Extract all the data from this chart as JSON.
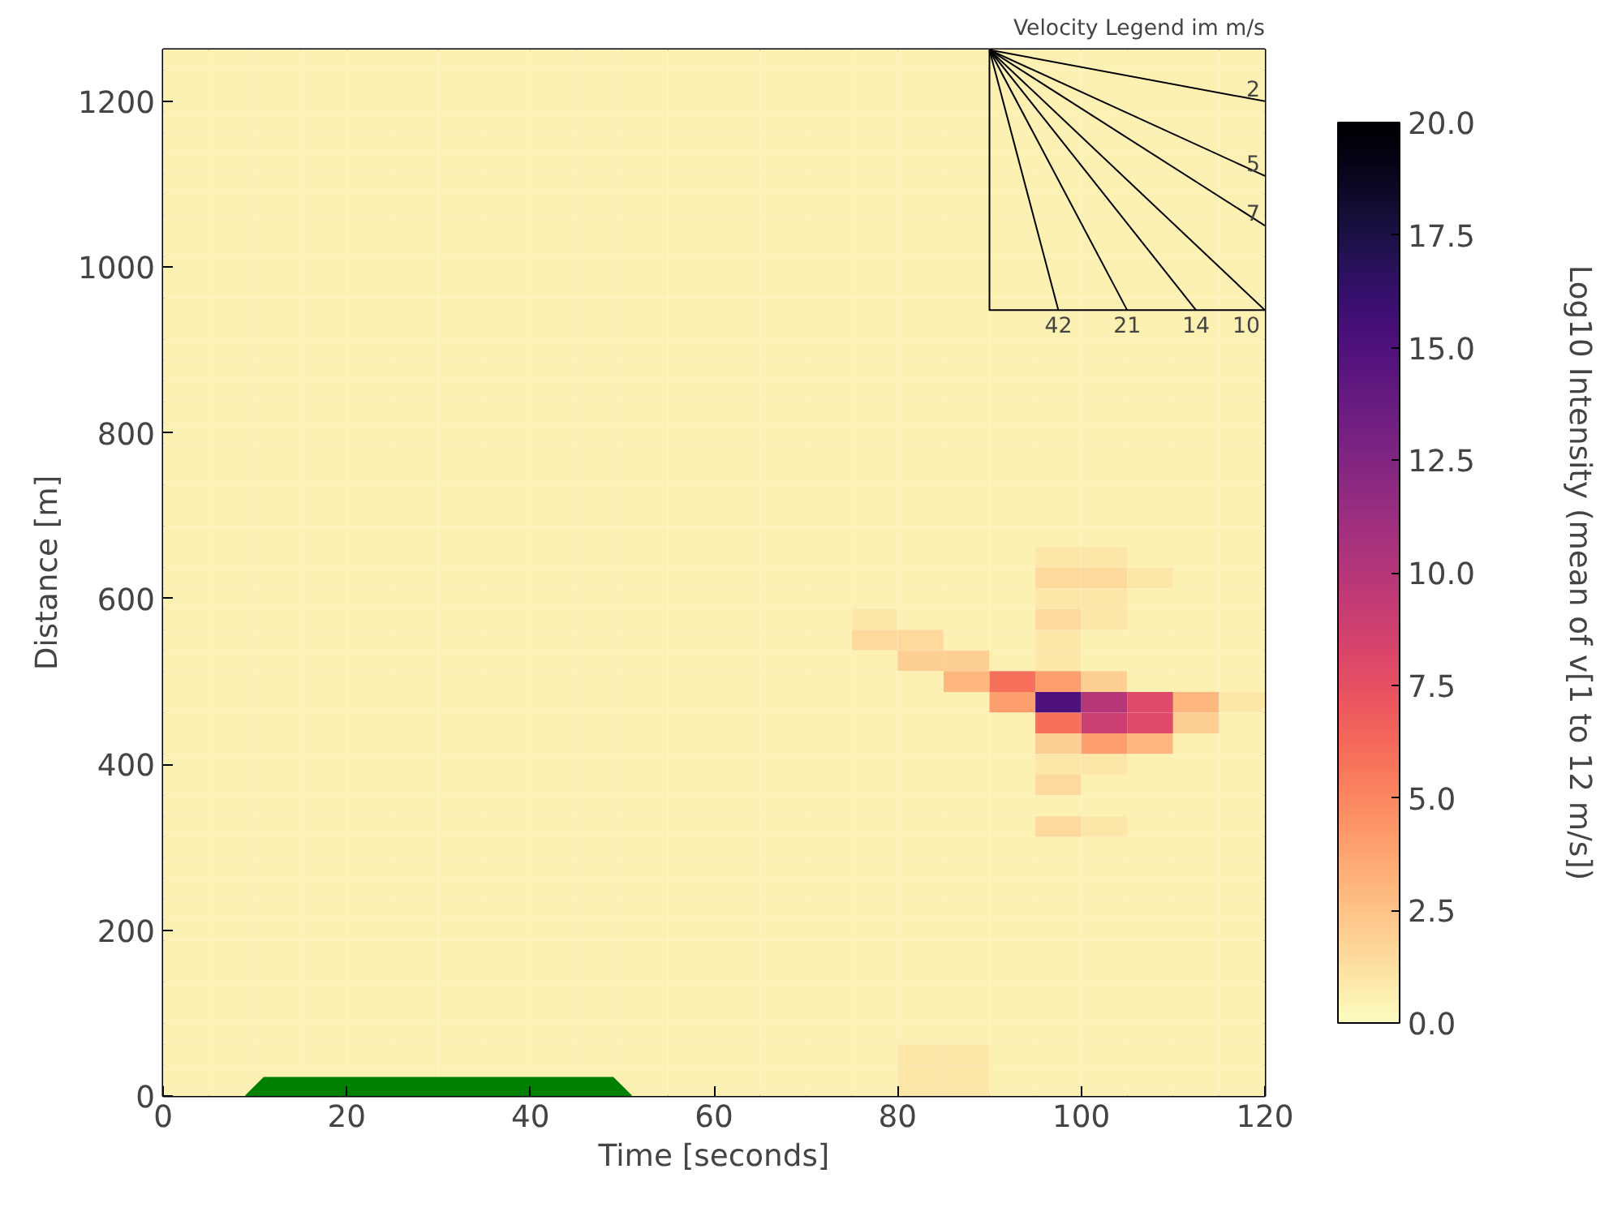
{
  "chart_data": {
    "type": "heatmap",
    "xlabel": "Time [seconds]",
    "ylabel": "Distance [m]",
    "clabel": "Log10 Intensity (mean of v[1 to 12 m/s])",
    "xlim": [
      0,
      120
    ],
    "ylim": [
      0,
      1262.5
    ],
    "xticks": [
      0,
      20,
      40,
      60,
      80,
      100,
      120
    ],
    "yticks": [
      0,
      200,
      400,
      600,
      800,
      1000,
      1200
    ],
    "clim": [
      0,
      20
    ],
    "cticks": [
      {
        "value": 0,
        "label": "0.0"
      },
      {
        "value": 2.5,
        "label": "2.5"
      },
      {
        "value": 5,
        "label": "5.0"
      },
      {
        "value": 7.5,
        "label": "7.5"
      },
      {
        "value": 10,
        "label": "10.0"
      },
      {
        "value": 12.5,
        "label": "12.5"
      },
      {
        "value": 15,
        "label": "15.0"
      },
      {
        "value": 17.5,
        "label": "17.5"
      },
      {
        "value": 20,
        "label": "20.0"
      }
    ],
    "x": [
      2.5,
      7.5,
      12.5,
      17.5,
      22.5,
      27.5,
      32.5,
      37.5,
      42.5,
      47.5,
      52.5,
      57.5,
      62.5,
      67.5,
      72.5,
      77.5,
      82.5,
      87.5,
      92.5,
      97.5,
      102.5,
      107.5,
      112.5,
      117.5
    ],
    "y": [
      1250,
      1225,
      1200,
      1175,
      1150,
      1125,
      1100,
      1075,
      1050,
      1025,
      1000,
      975,
      950,
      925,
      900,
      875,
      850,
      825,
      800,
      775,
      750,
      725,
      700,
      675,
      650,
      625,
      600,
      575,
      550,
      525,
      500,
      475,
      450,
      425,
      400,
      375,
      350,
      325,
      300,
      275,
      250,
      225,
      200,
      175,
      150,
      125,
      100,
      75,
      50,
      25,
      0
    ],
    "cells": [
      [
        0.5,
        0.5,
        0.5,
        0.5,
        0.5,
        0.5,
        0.5,
        0.5,
        0.5,
        0.5,
        0.5,
        0.5,
        0.5,
        0.5,
        0.5,
        0.5,
        0.5,
        0.5,
        0.5,
        0.5,
        0.5,
        0.5,
        0.5,
        0.5
      ],
      [
        0.5,
        0.5,
        0.5,
        0.5,
        0.5,
        0.5,
        0.5,
        0.5,
        0.5,
        0.5,
        0.5,
        0.5,
        0.5,
        0.5,
        0.5,
        0.5,
        0.5,
        0.5,
        0.5,
        0.5,
        0.5,
        0.5,
        0.5,
        0.5
      ],
      [
        0.5,
        0.5,
        0.5,
        0.5,
        0.5,
        0.5,
        0.5,
        0.5,
        0.5,
        0.5,
        0.5,
        0.5,
        0.5,
        0.5,
        0.5,
        0.5,
        0.5,
        0.5,
        0.5,
        0.5,
        0.5,
        0.5,
        0.5,
        0.5
      ],
      [
        0.5,
        0.5,
        0.5,
        0.5,
        0.5,
        0.5,
        0.5,
        0.5,
        0.5,
        0.5,
        0.5,
        0.5,
        0.5,
        0.5,
        0.5,
        0.5,
        0.5,
        0.5,
        0.5,
        0.5,
        0.5,
        0.5,
        0.5,
        0.5
      ],
      [
        0.5,
        0.5,
        0.5,
        0.5,
        0.5,
        0.5,
        0.5,
        0.5,
        0.5,
        0.5,
        0.5,
        0.5,
        0.5,
        0.5,
        0.5,
        0.5,
        0.5,
        0.5,
        0.5,
        0.5,
        0.5,
        0.5,
        0.5,
        0.5
      ],
      [
        0.5,
        0.5,
        0.5,
        0.5,
        0.5,
        0.5,
        0.5,
        0.5,
        0.5,
        0.5,
        0.5,
        0.5,
        0.5,
        0.5,
        0.5,
        0.5,
        0.5,
        0.5,
        0.5,
        0.5,
        0.5,
        0.5,
        0.5,
        0.5
      ],
      [
        0.5,
        0.5,
        0.5,
        0.5,
        0.5,
        0.5,
        0.5,
        0.5,
        0.5,
        0.5,
        0.5,
        0.5,
        0.5,
        0.5,
        0.5,
        0.5,
        0.5,
        0.5,
        0.5,
        0.5,
        0.5,
        0.5,
        0.5,
        0.5
      ],
      [
        0.5,
        0.5,
        0.5,
        0.5,
        0.5,
        0.5,
        0.5,
        0.5,
        0.5,
        0.5,
        0.5,
        0.5,
        0.5,
        0.5,
        0.5,
        0.5,
        0.5,
        0.5,
        0.5,
        0.5,
        0.5,
        0.5,
        0.5,
        0.5
      ],
      [
        0.5,
        0.5,
        0.5,
        0.5,
        0.5,
        0.5,
        0.5,
        0.5,
        0.5,
        0.5,
        0.5,
        0.5,
        0.5,
        0.5,
        0.5,
        0.5,
        0.5,
        0.5,
        0.5,
        0.5,
        0.5,
        0.5,
        0.5,
        0.5
      ],
      [
        0.5,
        0.5,
        0.5,
        0.5,
        0.5,
        0.5,
        0.5,
        0.5,
        0.5,
        0.5,
        0.5,
        0.5,
        0.5,
        0.5,
        0.5,
        0.5,
        0.5,
        0.5,
        0.5,
        0.5,
        0.5,
        0.5,
        0.5,
        0.5
      ],
      [
        0.5,
        0.5,
        0.5,
        0.5,
        0.5,
        0.5,
        0.5,
        0.5,
        0.5,
        0.5,
        0.5,
        0.5,
        0.5,
        0.5,
        0.5,
        0.5,
        0.5,
        0.5,
        0.5,
        0.5,
        0.5,
        0.5,
        0.5,
        0.5
      ],
      [
        0.5,
        0.5,
        0.5,
        0.5,
        0.5,
        0.5,
        0.5,
        0.5,
        0.5,
        0.5,
        0.5,
        0.5,
        0.5,
        0.5,
        0.5,
        0.5,
        0.5,
        0.5,
        0.5,
        0.5,
        0.5,
        0.5,
        0.5,
        0.5
      ],
      [
        0.5,
        0.5,
        0.5,
        0.5,
        0.5,
        0.5,
        0.5,
        0.5,
        0.5,
        0.5,
        0.5,
        0.5,
        0.5,
        0.5,
        0.5,
        0.5,
        0.5,
        0.5,
        0.5,
        0.5,
        0.5,
        0.5,
        0.5,
        0.5
      ],
      [
        0.5,
        0.5,
        0.5,
        0.5,
        0.5,
        0.5,
        0.5,
        0.5,
        0.5,
        0.5,
        0.5,
        0.5,
        0.5,
        0.5,
        0.5,
        0.5,
        0.5,
        0.5,
        0.5,
        0.5,
        0.5,
        0.5,
        0.5,
        0.5
      ],
      [
        0.5,
        0.5,
        0.5,
        0.5,
        0.5,
        0.5,
        0.5,
        0.5,
        0.5,
        0.5,
        0.5,
        0.5,
        0.5,
        0.5,
        0.5,
        0.5,
        0.5,
        0.5,
        0.5,
        0.5,
        0.5,
        0.5,
        0.5,
        0.5
      ],
      [
        0.5,
        0.5,
        0.5,
        0.5,
        0.5,
        0.5,
        0.5,
        0.5,
        0.5,
        0.5,
        0.5,
        0.5,
        0.5,
        0.5,
        0.5,
        0.5,
        0.5,
        0.5,
        0.5,
        0.5,
        0.5,
        0.5,
        0.5,
        0.5
      ],
      [
        0.5,
        0.5,
        0.5,
        0.5,
        0.5,
        0.5,
        0.5,
        0.5,
        0.5,
        0.5,
        0.5,
        0.5,
        0.5,
        0.5,
        0.5,
        0.5,
        0.5,
        0.5,
        0.5,
        0.5,
        0.5,
        0.5,
        0.5,
        0.5
      ],
      [
        0.5,
        0.5,
        0.5,
        0.5,
        0.5,
        0.5,
        0.5,
        0.5,
        0.5,
        0.5,
        0.5,
        0.5,
        0.5,
        0.5,
        0.5,
        0.5,
        0.5,
        0.5,
        0.5,
        0.5,
        0.5,
        0.5,
        0.5,
        0.5
      ],
      [
        0.5,
        0.5,
        0.5,
        0.5,
        0.5,
        0.5,
        0.5,
        0.5,
        0.5,
        0.5,
        0.5,
        0.5,
        0.5,
        0.5,
        0.5,
        0.5,
        0.5,
        0.5,
        0.5,
        0.5,
        0.5,
        0.5,
        0.5,
        0.5
      ],
      [
        0.5,
        0.5,
        0.5,
        0.5,
        0.5,
        0.5,
        0.5,
        0.5,
        0.5,
        0.5,
        0.5,
        0.5,
        0.5,
        0.5,
        0.5,
        0.5,
        0.5,
        0.5,
        0.5,
        0.5,
        0.5,
        0.5,
        0.5,
        0.5
      ],
      [
        0.5,
        0.5,
        0.5,
        0.5,
        0.5,
        0.5,
        0.5,
        0.5,
        0.5,
        0.5,
        0.5,
        0.5,
        0.5,
        0.5,
        0.5,
        0.5,
        0.5,
        0.5,
        0.5,
        0.5,
        0.5,
        0.5,
        0.5,
        0.5
      ],
      [
        0.5,
        0.5,
        0.5,
        0.5,
        0.5,
        0.5,
        0.5,
        0.5,
        0.5,
        0.5,
        0.5,
        0.5,
        0.5,
        0.5,
        0.5,
        0.5,
        0.5,
        0.5,
        0.5,
        0.5,
        0.5,
        0.5,
        0.5,
        0.5
      ],
      [
        0.5,
        0.5,
        0.5,
        0.5,
        0.5,
        0.5,
        0.5,
        0.5,
        0.5,
        0.5,
        0.5,
        0.5,
        0.5,
        0.5,
        0.5,
        0.5,
        0.5,
        0.5,
        0.5,
        0.5,
        0.5,
        0.5,
        0.5,
        0.5
      ],
      [
        0.5,
        0.5,
        0.5,
        0.5,
        0.5,
        0.5,
        0.5,
        0.5,
        0.5,
        0.5,
        0.5,
        0.5,
        0.5,
        0.5,
        0.5,
        0.5,
        0.5,
        0.5,
        0.5,
        0.5,
        0.5,
        0.5,
        0.5,
        0.5
      ],
      [
        0.5,
        0.5,
        0.5,
        0.5,
        0.5,
        0.5,
        0.5,
        0.5,
        0.5,
        0.5,
        0.5,
        0.5,
        0.5,
        0.5,
        0.5,
        0.5,
        0.5,
        0.5,
        0.5,
        1,
        1,
        0.5,
        0.5,
        0.5
      ],
      [
        0.5,
        0.5,
        0.5,
        0.5,
        0.5,
        0.5,
        0.5,
        0.5,
        0.5,
        0.5,
        0.5,
        0.5,
        0.5,
        0.5,
        0.5,
        0.5,
        0.5,
        0.5,
        0.5,
        1.5,
        1.5,
        1,
        0.5,
        0.5
      ],
      [
        0.5,
        0.5,
        0.5,
        0.5,
        0.5,
        0.5,
        0.5,
        0.5,
        0.5,
        0.5,
        0.5,
        0.5,
        0.5,
        0.5,
        0.5,
        0.5,
        0.5,
        0.5,
        0.5,
        1,
        1,
        0.5,
        0.5,
        0.5
      ],
      [
        0.5,
        0.5,
        0.5,
        0.5,
        0.5,
        0.5,
        0.5,
        0.5,
        0.5,
        0.5,
        0.5,
        0.5,
        0.5,
        0.5,
        0.5,
        1,
        0.5,
        0.5,
        0.5,
        1.5,
        1,
        0.5,
        0.5,
        0.5
      ],
      [
        0.5,
        0.5,
        0.5,
        0.5,
        0.5,
        0.5,
        0.5,
        0.5,
        0.5,
        0.5,
        0.5,
        0.5,
        0.5,
        0.5,
        0.5,
        1.5,
        1.5,
        0.5,
        0.5,
        1,
        0.5,
        0.5,
        0.5,
        0.5
      ],
      [
        0.5,
        0.5,
        0.5,
        0.5,
        0.5,
        0.5,
        0.5,
        0.5,
        0.5,
        0.5,
        0.5,
        0.5,
        0.5,
        0.5,
        0.5,
        0.5,
        2,
        2,
        0.5,
        1,
        0.5,
        0.5,
        0.5,
        0.5
      ],
      [
        0.5,
        0.5,
        0.5,
        0.5,
        0.5,
        0.5,
        0.5,
        0.5,
        0.5,
        0.5,
        0.5,
        0.5,
        0.5,
        0.5,
        0.5,
        0.5,
        0.5,
        3,
        6,
        4,
        2,
        0.5,
        0.5,
        0.5
      ],
      [
        0.5,
        0.5,
        0.5,
        0.5,
        0.5,
        0.5,
        0.5,
        0.5,
        0.5,
        0.5,
        0.5,
        0.5,
        0.5,
        0.5,
        0.5,
        0.5,
        0.5,
        0.5,
        4,
        15,
        10,
        8,
        3,
        1
      ],
      [
        0.5,
        0.5,
        0.5,
        0.5,
        0.5,
        0.5,
        0.5,
        0.5,
        0.5,
        0.5,
        0.5,
        0.5,
        0.5,
        0.5,
        0.5,
        0.5,
        0.5,
        0.5,
        0.5,
        6,
        9,
        8,
        2,
        0.5
      ],
      [
        0.5,
        0.5,
        0.5,
        0.5,
        0.5,
        0.5,
        0.5,
        0.5,
        0.5,
        0.5,
        0.5,
        0.5,
        0.5,
        0.5,
        0.5,
        0.5,
        0.5,
        0.5,
        0.5,
        2,
        4,
        3,
        0.5,
        0.5
      ],
      [
        0.5,
        0.5,
        0.5,
        0.5,
        0.5,
        0.5,
        0.5,
        0.5,
        0.5,
        0.5,
        0.5,
        0.5,
        0.5,
        0.5,
        0.5,
        0.5,
        0.5,
        0.5,
        0.5,
        1,
        1,
        0.5,
        0.5,
        0.5
      ],
      [
        0.5,
        0.5,
        0.5,
        0.5,
        0.5,
        0.5,
        0.5,
        0.5,
        0.5,
        0.5,
        0.5,
        0.5,
        0.5,
        0.5,
        0.5,
        0.5,
        0.5,
        0.5,
        0.5,
        1.5,
        0.5,
        0.5,
        0.5,
        0.5
      ],
      [
        0.5,
        0.5,
        0.5,
        0.5,
        0.5,
        0.5,
        0.5,
        0.5,
        0.5,
        0.5,
        0.5,
        0.5,
        0.5,
        0.5,
        0.5,
        0.5,
        0.5,
        0.5,
        0.5,
        0.5,
        0.5,
        0.5,
        0.5,
        0.5
      ],
      [
        0.5,
        0.5,
        0.5,
        0.5,
        0.5,
        0.5,
        0.5,
        0.5,
        0.5,
        0.5,
        0.5,
        0.5,
        0.5,
        0.5,
        0.5,
        0.5,
        0.5,
        0.5,
        0.5,
        1.5,
        1,
        0.5,
        0.5,
        0.5
      ],
      [
        0.5,
        0.5,
        0.5,
        0.5,
        0.5,
        0.5,
        0.5,
        0.5,
        0.5,
        0.5,
        0.5,
        0.5,
        0.5,
        0.5,
        0.5,
        0.5,
        0.5,
        0.5,
        0.5,
        0.5,
        0.5,
        0.5,
        0.5,
        0.5
      ],
      [
        0.5,
        0.5,
        0.5,
        0.5,
        0.5,
        0.5,
        0.5,
        0.5,
        0.5,
        0.5,
        0.5,
        0.5,
        0.5,
        0.5,
        0.5,
        0.5,
        0.5,
        0.5,
        0.5,
        0.5,
        0.5,
        0.5,
        0.5,
        0.5
      ],
      [
        0.5,
        0.5,
        0.5,
        0.5,
        0.5,
        0.5,
        0.5,
        0.5,
        0.5,
        0.5,
        0.5,
        0.5,
        0.5,
        0.5,
        0.5,
        0.5,
        0.5,
        0.5,
        0.5,
        0.5,
        0.5,
        0.5,
        0.5,
        0.5
      ],
      [
        0.5,
        0.5,
        0.5,
        0.5,
        0.5,
        0.5,
        0.5,
        0.5,
        0.5,
        0.5,
        0.5,
        0.5,
        0.5,
        0.5,
        0.5,
        0.5,
        0.5,
        0.5,
        0.5,
        0.5,
        0.5,
        0.5,
        0.5,
        0.5
      ],
      [
        0.5,
        0.5,
        0.5,
        0.5,
        0.5,
        0.5,
        0.5,
        0.5,
        0.5,
        0.5,
        0.5,
        0.5,
        0.5,
        0.5,
        0.5,
        0.5,
        0.5,
        0.5,
        0.5,
        0.5,
        0.5,
        0.5,
        0.5,
        0.5
      ],
      [
        0.5,
        0.5,
        0.5,
        0.5,
        0.5,
        0.5,
        0.5,
        0.5,
        0.5,
        0.5,
        0.5,
        0.5,
        0.5,
        0.5,
        0.5,
        0.5,
        0.5,
        0.5,
        0.5,
        0.5,
        0.5,
        0.5,
        0.5,
        0.5
      ],
      [
        0.5,
        0.5,
        0.5,
        0.5,
        0.5,
        0.5,
        0.5,
        0.5,
        0.5,
        0.5,
        0.5,
        0.5,
        0.5,
        0.5,
        0.5,
        0.5,
        0.5,
        0.5,
        0.5,
        0.5,
        0.5,
        0.5,
        0.5,
        0.5
      ],
      [
        0.5,
        0.5,
        0.5,
        0.5,
        0.5,
        0.5,
        0.5,
        0.5,
        0.5,
        0.5,
        0.5,
        0.5,
        0.5,
        0.5,
        0.5,
        0.5,
        0.5,
        0.5,
        0.5,
        0.5,
        0.5,
        0.5,
        0.5,
        0.5
      ],
      [
        0.5,
        0.5,
        0.5,
        0.5,
        0.5,
        0.5,
        0.5,
        0.5,
        0.5,
        0.5,
        0.5,
        0.5,
        0.5,
        0.5,
        0.5,
        0.5,
        0.5,
        0.5,
        0.5,
        0.5,
        0.5,
        0.5,
        0.5,
        0.5
      ],
      [
        0.5,
        0.5,
        0.5,
        0.5,
        0.5,
        0.5,
        0.5,
        0.5,
        0.5,
        0.5,
        0.5,
        0.5,
        0.5,
        0.5,
        0.5,
        0.5,
        0.5,
        0.5,
        0.5,
        0.5,
        0.5,
        0.5,
        0.5,
        0.5
      ],
      [
        0.5,
        0.5,
        0.5,
        0.5,
        0.5,
        0.5,
        0.5,
        0.5,
        0.5,
        0.5,
        0.5,
        0.5,
        0.5,
        0.5,
        0.5,
        0.5,
        1,
        1,
        0.5,
        0.5,
        0.5,
        0.5,
        0.5,
        0.5
      ],
      [
        0.5,
        0.5,
        0.5,
        0.5,
        0.5,
        0.5,
        0.5,
        0.5,
        0.5,
        0.5,
        0.5,
        0.5,
        0.5,
        0.5,
        0.5,
        0.5,
        1,
        1,
        0.5,
        0.5,
        0.5,
        0.5,
        0.5,
        0.5
      ],
      [
        0.5,
        0.5,
        null,
        null,
        null,
        null,
        null,
        null,
        null,
        null,
        0.5,
        0.5,
        0.5,
        0.5,
        0.5,
        0.5,
        1,
        1,
        0.5,
        0.5,
        0.5,
        0.5,
        0.5,
        0.5
      ]
    ],
    "series": [
      {
        "type": "area",
        "color": "#008000",
        "x": [
          9,
          11,
          49,
          51
        ],
        "values": [
          0,
          22,
          22,
          0
        ]
      },
      {
        "type": "line",
        "color": "#000000",
        "x": [
          90,
          90,
          120
        ],
        "values": [
          1262,
          948,
          948
        ]
      },
      {
        "type": "line",
        "name": "2",
        "color": "#000000",
        "x": [
          90,
          120
        ],
        "values": [
          1262,
          1200
        ]
      },
      {
        "type": "line",
        "name": "5",
        "color": "#000000",
        "x": [
          90,
          120
        ],
        "values": [
          1262,
          1110
        ]
      },
      {
        "type": "line",
        "name": "7",
        "color": "#000000",
        "x": [
          90,
          120
        ],
        "values": [
          1262,
          1050
        ]
      },
      {
        "type": "line",
        "name": "10",
        "color": "#000000",
        "x": [
          90,
          120
        ],
        "values": [
          1262,
          948
        ]
      },
      {
        "type": "line",
        "name": "14",
        "color": "#000000",
        "x": [
          90,
          112.5
        ],
        "values": [
          1262,
          948
        ]
      },
      {
        "type": "line",
        "name": "21",
        "color": "#000000",
        "x": [
          90,
          105
        ],
        "values": [
          1262,
          948
        ]
      },
      {
        "type": "line",
        "name": "42",
        "color": "#000000",
        "x": [
          90,
          97.5
        ],
        "values": [
          1262,
          948
        ]
      }
    ],
    "annotations": [
      "Velocity Legend im m/s"
    ]
  }
}
